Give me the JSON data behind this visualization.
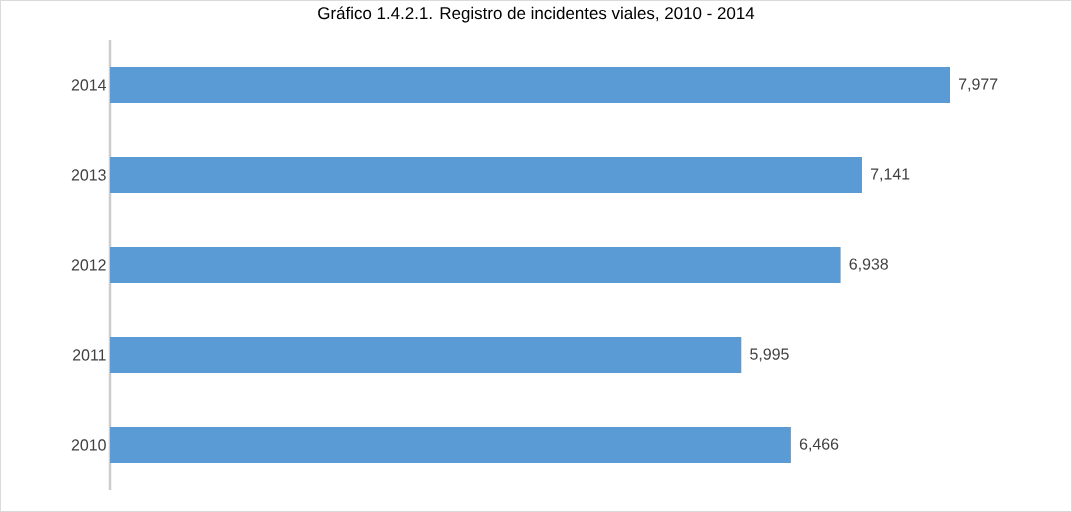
{
  "chart_data": {
    "type": "bar",
    "orientation": "horizontal",
    "title": "Gráfico 1.4.2.1. Registro de incidentes viales, 2010 - 2014",
    "categories": [
      "2014",
      "2013",
      "2012",
      "2011",
      "2010"
    ],
    "values": [
      7977,
      7141,
      6938,
      5995,
      6466
    ],
    "value_labels": [
      "7,977",
      "7,141",
      "6,938",
      "5,995",
      "6,466"
    ],
    "color": "#5b9bd5"
  }
}
